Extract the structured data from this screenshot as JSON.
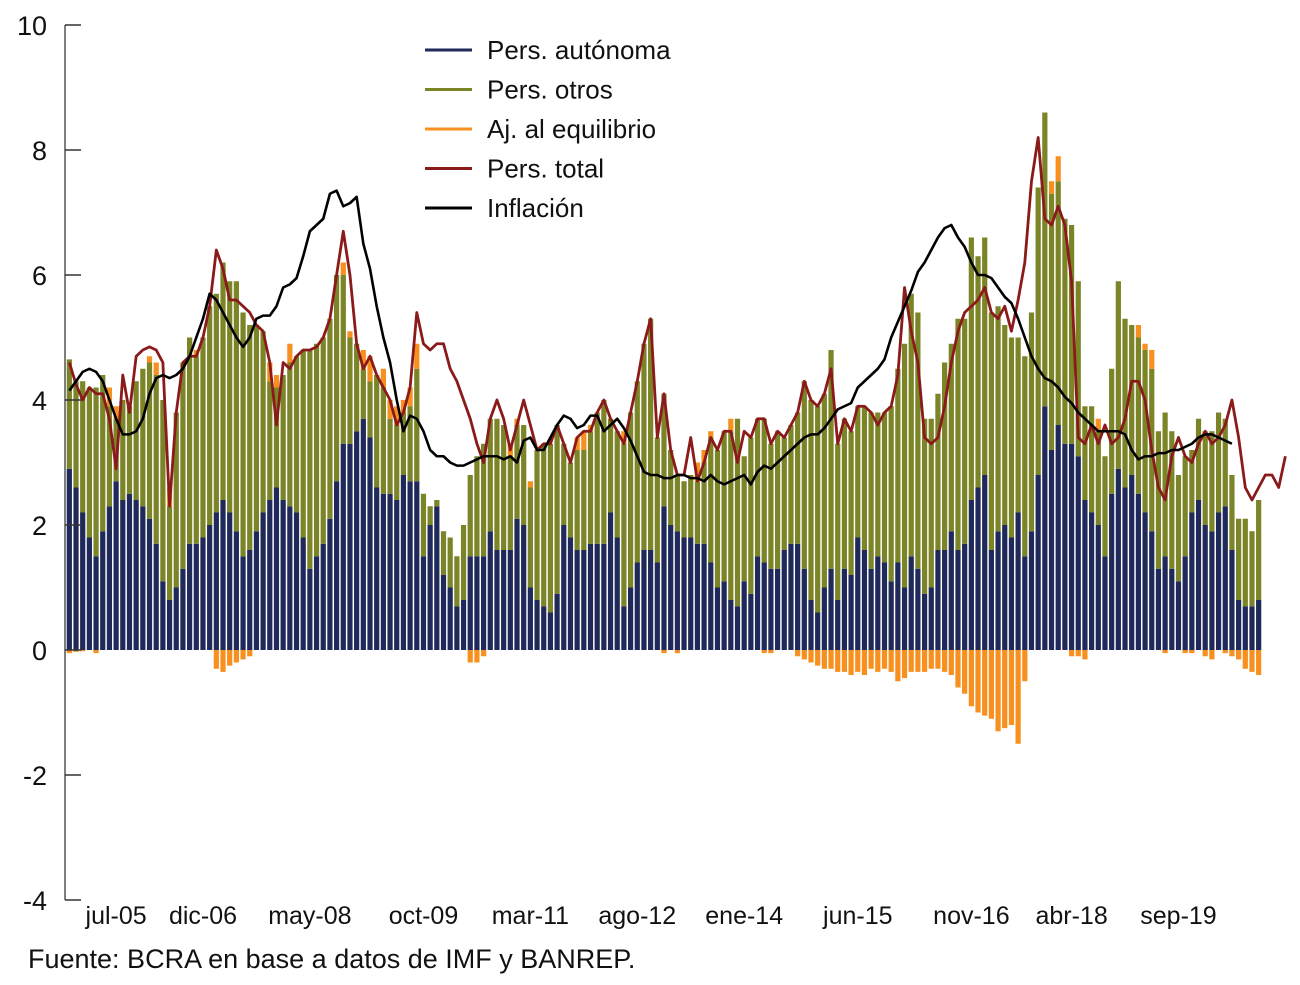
{
  "chart_data": {
    "type": "bar",
    "subtype": "stacked-bar-with-lines",
    "title": "",
    "xlabel": "",
    "ylabel": "",
    "ylim": [
      -4,
      10
    ],
    "yticks": [
      10,
      8,
      6,
      4,
      2,
      0,
      -2,
      -4
    ],
    "ytick_labels": [
      "10",
      "8",
      "6",
      "4",
      "2",
      "0",
      "-2",
      "-4"
    ],
    "grid": false,
    "legend_position": "top-center",
    "x_tick_labels": [
      {
        "label": "jul-05",
        "index": 7
      },
      {
        "label": "dic-06",
        "index": 20
      },
      {
        "label": "may-08",
        "index": 36
      },
      {
        "label": "oct-09",
        "index": 53
      },
      {
        "label": "mar-11",
        "index": 69
      },
      {
        "label": "ago-12",
        "index": 85
      },
      {
        "label": "ene-14",
        "index": 101
      },
      {
        "label": "jun-15",
        "index": 118
      },
      {
        "label": "nov-16",
        "index": 135
      },
      {
        "label": "abr-18",
        "index": 150
      },
      {
        "label": "sep-19",
        "index": 166
      }
    ],
    "series": [
      {
        "name": "Pers. autónoma",
        "kind": "bar",
        "color": "#1f2a5a",
        "values": [
          2.9,
          2.6,
          2.2,
          1.8,
          1.5,
          1.9,
          2.3,
          2.7,
          2.4,
          2.5,
          2.4,
          2.3,
          2.1,
          1.7,
          1.1,
          0.8,
          1.0,
          1.3,
          1.7,
          1.7,
          1.8,
          2.0,
          2.2,
          2.4,
          2.2,
          1.9,
          1.5,
          1.6,
          1.9,
          2.2,
          2.4,
          2.6,
          2.4,
          2.3,
          2.2,
          1.8,
          1.3,
          1.5,
          1.7,
          2.1,
          2.7,
          3.3,
          3.3,
          3.5,
          3.7,
          3.4,
          2.6,
          2.5,
          2.5,
          2.4,
          2.8,
          2.7,
          2.7,
          1.5,
          2.0,
          2.3,
          1.2,
          1.0,
          0.7,
          0.8,
          1.5,
          1.5,
          1.5,
          1.9,
          1.6,
          1.6,
          1.6,
          2.1,
          2.0,
          1.0,
          0.8,
          0.7,
          0.6,
          0.9,
          2.0,
          1.8,
          1.6,
          1.6,
          1.7,
          1.7,
          1.7,
          2.2,
          1.8,
          0.7,
          1.0,
          1.4,
          1.6,
          1.6,
          1.4,
          2.3,
          2.0,
          1.9,
          1.8,
          1.8,
          1.7,
          1.7,
          1.4,
          1.0,
          1.1,
          0.8,
          0.7,
          1.1,
          0.9,
          1.5,
          1.4,
          1.3,
          1.3,
          1.6,
          1.7,
          1.7,
          1.3,
          0.8,
          0.6,
          1.0,
          1.3,
          0.8,
          1.3,
          1.2,
          1.8,
          1.6,
          1.3,
          1.5,
          1.4,
          1.1,
          1.4,
          1.0,
          1.5,
          1.3,
          0.9,
          1.0,
          1.6,
          1.6,
          1.9,
          1.6,
          1.7,
          2.4,
          2.6,
          2.8,
          1.6,
          1.9,
          2.0,
          1.8,
          2.2,
          1.5,
          1.9,
          2.8,
          3.9,
          3.2,
          3.6,
          3.3,
          3.3,
          3.1,
          2.4,
          2.2,
          2.0,
          1.5,
          2.5,
          2.9,
          2.6,
          2.8,
          2.5,
          2.2,
          1.9,
          1.3,
          1.5,
          1.3,
          1.1,
          1.5,
          2.2,
          2.4,
          2.0,
          1.9,
          2.2,
          2.3,
          1.6,
          0.8,
          0.7,
          0.7,
          0.8
        ]
      },
      {
        "name": "Pers. otros",
        "kind": "bar",
        "color": "#7b8527",
        "values": [
          1.75,
          1.7,
          2.1,
          2.4,
          2.7,
          2.5,
          1.6,
          1.0,
          1.6,
          1.4,
          1.9,
          2.2,
          2.5,
          2.7,
          2.9,
          1.5,
          2.8,
          3.3,
          3.3,
          3.0,
          3.2,
          3.5,
          3.5,
          3.8,
          3.7,
          4.0,
          3.9,
          3.6,
          3.3,
          2.9,
          1.9,
          1.6,
          2.0,
          2.3,
          2.5,
          3.0,
          3.5,
          3.4,
          3.3,
          3.2,
          3.3,
          2.7,
          1.7,
          1.4,
          0.8,
          0.9,
          1.8,
          1.7,
          1.2,
          1.2,
          1.0,
          1.2,
          1.8,
          1.0,
          0.3,
          0.1,
          0.7,
          0.8,
          0.8,
          1.2,
          1.3,
          1.6,
          1.8,
          1.8,
          2.1,
          2.0,
          1.5,
          1.5,
          1.6,
          1.6,
          2.4,
          2.6,
          2.7,
          2.7,
          1.3,
          1.2,
          1.6,
          1.6,
          1.8,
          2.1,
          2.3,
          1.5,
          1.7,
          2.6,
          2.8,
          2.9,
          3.3,
          3.7,
          2.0,
          1.8,
          1.2,
          0.9,
          0.9,
          1.0,
          1.0,
          1.3,
          2.0,
          2.2,
          2.4,
          2.7,
          3.0,
          2.0,
          2.5,
          2.2,
          2.3,
          2.0,
          2.2,
          1.8,
          1.9,
          2.1,
          3.0,
          3.2,
          3.3,
          3.1,
          3.5,
          2.5,
          2.4,
          2.3,
          2.1,
          2.3,
          2.5,
          2.3,
          2.4,
          2.8,
          3.1,
          3.9,
          4.2,
          4.1,
          2.8,
          2.7,
          2.5,
          3.0,
          3.0,
          3.7,
          3.6,
          4.2,
          3.7,
          3.8,
          3.8,
          3.6,
          3.2,
          3.2,
          2.8,
          3.2,
          3.5,
          4.6,
          4.7,
          4.1,
          3.9,
          3.6,
          3.5,
          2.8,
          1.5,
          1.7,
          1.5,
          1.6,
          2.0,
          3.0,
          2.7,
          2.4,
          2.5,
          2.6,
          2.6,
          2.2,
          2.3,
          2.2,
          1.7,
          1.6,
          1.0,
          1.3,
          1.5,
          1.6,
          1.6,
          1.4,
          1.2,
          1.3,
          1.4,
          1.2,
          1.6,
          1.7,
          1.8,
          2.0,
          2.6
        ]
      },
      {
        "name": "Aj. al equilibrio",
        "kind": "bar",
        "color": "#f7901e",
        "values": [
          -0.05,
          -0.03,
          -0.02,
          0.0,
          -0.05,
          0.0,
          0.3,
          0.2,
          0.0,
          0.0,
          0.0,
          0.0,
          0.1,
          0.2,
          0.0,
          0.3,
          0.0,
          0.0,
          0.0,
          0.1,
          0.0,
          0.0,
          -0.3,
          -0.35,
          -0.25,
          -0.2,
          -0.15,
          -0.1,
          0.0,
          0.0,
          0.3,
          0.2,
          0.0,
          0.3,
          0.0,
          0.0,
          0.0,
          0.0,
          0.0,
          0.0,
          0.0,
          0.2,
          0.1,
          0.0,
          0.3,
          0.4,
          0.0,
          0.3,
          0.3,
          0.3,
          0.2,
          0.3,
          0.4,
          0.0,
          0.0,
          0.0,
          0.0,
          0.0,
          0.0,
          0.0,
          -0.2,
          -0.2,
          -0.1,
          0.0,
          0.0,
          0.0,
          0.2,
          0.1,
          0.0,
          0.1,
          0.0,
          0.0,
          0.0,
          0.0,
          0.0,
          0.0,
          0.2,
          0.3,
          0.1,
          0.0,
          0.0,
          0.0,
          0.0,
          0.2,
          0.0,
          0.0,
          0.0,
          0.0,
          0.0,
          -0.05,
          0.0,
          -0.05,
          0.0,
          0.0,
          0.3,
          0.2,
          0.1,
          0.0,
          0.0,
          0.2,
          0.0,
          0.0,
          0.0,
          0.0,
          -0.05,
          -0.05,
          0.0,
          0.0,
          0.0,
          -0.1,
          -0.15,
          -0.2,
          -0.25,
          -0.3,
          -0.3,
          -0.35,
          -0.35,
          -0.4,
          -0.35,
          -0.4,
          -0.3,
          -0.35,
          -0.3,
          -0.35,
          -0.5,
          -0.45,
          -0.35,
          -0.35,
          -0.35,
          -0.3,
          -0.3,
          -0.35,
          -0.4,
          -0.6,
          -0.7,
          -0.9,
          -1.0,
          -1.05,
          -1.1,
          -1.3,
          -1.25,
          -1.2,
          -1.5,
          -0.5,
          0.0,
          0.0,
          0.0,
          0.2,
          0.4,
          0.0,
          -0.1,
          -0.1,
          -0.15,
          0.0,
          0.2,
          0.0,
          0.0,
          0.0,
          0.0,
          0.0,
          0.2,
          0.1,
          0.3,
          0.0,
          -0.05,
          0.0,
          0.0,
          -0.05,
          -0.05,
          0.0,
          -0.1,
          -0.15,
          0.0,
          -0.05,
          -0.1,
          -0.15,
          -0.3,
          -0.35,
          -0.4
        ]
      },
      {
        "name": "Pers. total",
        "kind": "line",
        "color": "#8b1a1a",
        "values": [
          4.6,
          4.25,
          4.0,
          4.2,
          4.1,
          4.1,
          3.7,
          2.9,
          4.4,
          3.8,
          4.7,
          4.8,
          4.85,
          4.8,
          4.6,
          2.3,
          3.8,
          4.6,
          4.7,
          4.7,
          5.0,
          5.5,
          6.4,
          6.1,
          5.6,
          5.6,
          5.5,
          5.4,
          5.2,
          5.1,
          4.6,
          3.6,
          4.6,
          4.5,
          4.7,
          4.8,
          4.8,
          4.85,
          5.0,
          5.3,
          6.0,
          6.7,
          6.0,
          4.9,
          4.5,
          4.7,
          4.4,
          4.2,
          4.0,
          3.6,
          3.8,
          4.2,
          5.4,
          4.9,
          4.8,
          4.9,
          4.9,
          4.5,
          4.3,
          4.0,
          3.7,
          3.3,
          3.0,
          3.7,
          4.0,
          3.7,
          3.2,
          3.6,
          4.0,
          3.6,
          3.2,
          3.3,
          3.3,
          3.6,
          3.3,
          3.0,
          3.4,
          3.5,
          3.5,
          3.8,
          4.0,
          3.7,
          3.5,
          3.3,
          3.8,
          4.3,
          4.9,
          5.3,
          3.4,
          4.1,
          3.2,
          2.8,
          2.8,
          3.4,
          2.7,
          3.0,
          3.4,
          3.2,
          3.5,
          3.5,
          3.0,
          3.5,
          3.4,
          3.7,
          3.7,
          3.3,
          3.5,
          3.4,
          3.6,
          3.8,
          4.3,
          4.0,
          3.9,
          4.1,
          4.5,
          3.3,
          3.7,
          3.5,
          3.9,
          3.9,
          3.8,
          3.6,
          3.8,
          3.9,
          4.4,
          5.8,
          5.1,
          4.6,
          3.4,
          3.3,
          3.4,
          3.9,
          4.6,
          5.1,
          5.4,
          5.5,
          5.6,
          5.8,
          5.4,
          5.3,
          5.5,
          5.1,
          5.6,
          6.2,
          7.5,
          8.2,
          6.9,
          6.8,
          7.1,
          6.8,
          5.9,
          3.4,
          3.3,
          3.6,
          3.3,
          3.6,
          3.3,
          3.4,
          3.7,
          4.3,
          4.3,
          4.0,
          3.2,
          2.6,
          2.4,
          3.1,
          3.4,
          3.1,
          3.0,
          3.3,
          3.5,
          3.3,
          3.4,
          3.6,
          4.0,
          3.4,
          2.6,
          2.4,
          2.6,
          2.8,
          2.8,
          2.6,
          3.1
        ]
      },
      {
        "name": "Inflación",
        "kind": "line",
        "color": "#000000",
        "values": [
          4.15,
          4.3,
          4.45,
          4.5,
          4.45,
          4.3,
          4.0,
          3.7,
          3.45,
          3.45,
          3.5,
          3.7,
          4.1,
          4.35,
          4.4,
          4.35,
          4.4,
          4.5,
          4.7,
          5.0,
          5.3,
          5.7,
          5.6,
          5.4,
          5.2,
          5.0,
          4.85,
          5.0,
          5.3,
          5.35,
          5.35,
          5.5,
          5.8,
          5.85,
          5.95,
          6.3,
          6.7,
          6.8,
          6.9,
          7.3,
          7.35,
          7.1,
          7.15,
          7.25,
          6.5,
          6.1,
          5.5,
          5.0,
          4.6,
          4.0,
          3.5,
          3.75,
          3.7,
          3.5,
          3.2,
          3.1,
          3.1,
          3.0,
          2.95,
          2.95,
          3.0,
          3.05,
          3.1,
          3.1,
          3.1,
          3.05,
          3.1,
          3.0,
          3.35,
          3.4,
          3.2,
          3.2,
          3.4,
          3.6,
          3.75,
          3.7,
          3.55,
          3.6,
          3.75,
          3.75,
          3.5,
          3.6,
          3.7,
          3.55,
          3.35,
          3.1,
          2.85,
          2.8,
          2.8,
          2.75,
          2.75,
          2.8,
          2.8,
          2.75,
          2.75,
          2.7,
          2.8,
          2.7,
          2.65,
          2.7,
          2.75,
          2.8,
          2.65,
          2.85,
          2.95,
          2.9,
          3.0,
          3.1,
          3.2,
          3.3,
          3.4,
          3.45,
          3.45,
          3.55,
          3.7,
          3.85,
          3.9,
          3.95,
          4.2,
          4.3,
          4.4,
          4.5,
          4.65,
          5.0,
          5.25,
          5.5,
          5.75,
          6.05,
          6.2,
          6.4,
          6.6,
          6.75,
          6.8,
          6.6,
          6.45,
          6.2,
          6.0,
          6.0,
          5.95,
          5.8,
          5.65,
          5.55,
          5.3,
          5.0,
          4.7,
          4.5,
          4.35,
          4.3,
          4.2,
          4.05,
          3.95,
          3.8,
          3.7,
          3.6,
          3.5,
          3.5,
          3.5,
          3.5,
          3.45,
          3.2,
          3.05,
          3.1,
          3.1,
          3.15,
          3.15,
          3.2,
          3.2,
          3.25,
          3.3,
          3.4,
          3.45,
          3.45,
          3.4,
          3.35,
          3.3
        ]
      }
    ]
  },
  "footnote": "Fuente: BCRA en base a datos de IMF y BANREP."
}
